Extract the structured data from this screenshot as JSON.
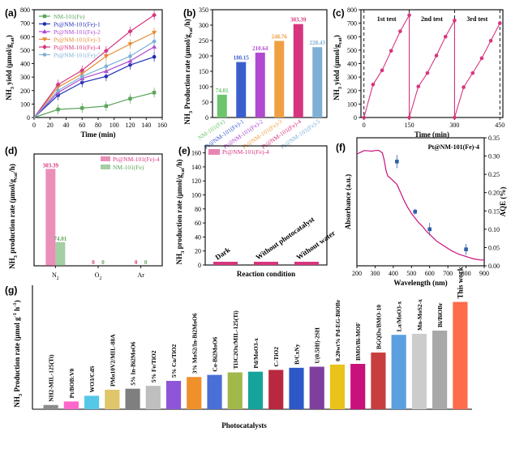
{
  "chart_data": [
    {
      "panel": "(a)",
      "type": "line",
      "xlabel": "Time (min)",
      "ylabel": "NH3 yield (μmol/gcat)",
      "xlim": [
        0,
        160
      ],
      "ylim": [
        0,
        800
      ],
      "xticks": [
        0,
        20,
        40,
        60,
        80,
        100,
        120,
        140,
        160
      ],
      "yticks": [
        0,
        100,
        200,
        300,
        400,
        500,
        600,
        700,
        800
      ],
      "x": [
        0,
        30,
        60,
        90,
        120,
        150
      ],
      "legend": "top-left",
      "series": [
        {
          "name": "NM-101(Fe)",
          "color": "#5aa55a",
          "values": [
            0,
            60,
            70,
            85,
            140,
            185
          ]
        },
        {
          "name": "Pt@NM-101(Fe)-1",
          "color": "#1f2db5",
          "values": [
            0,
            165,
            260,
            305,
            390,
            450
          ]
        },
        {
          "name": "Pt@NM-101(Fe)-2",
          "color": "#b04ad0",
          "values": [
            0,
            185,
            290,
            345,
            420,
            525
          ]
        },
        {
          "name": "Pt@NM-101(Fe)-3",
          "color": "#e68a30",
          "values": [
            0,
            225,
            325,
            455,
            545,
            630
          ]
        },
        {
          "name": "Pt@NM-101(Fe)-4",
          "color": "#d8347e",
          "values": [
            0,
            245,
            350,
            495,
            640,
            760
          ]
        },
        {
          "name": "Pt@NM-101(Fe)-5",
          "color": "#7eb0d6",
          "values": [
            0,
            200,
            305,
            380,
            455,
            565
          ]
        }
      ]
    },
    {
      "panel": "(b)",
      "type": "bar",
      "ylabel": "NH3 Production rate (μmol/gcat/h)",
      "ylim": [
        0,
        350
      ],
      "yticks": [
        0,
        50,
        100,
        150,
        200,
        250,
        300,
        350
      ],
      "categories": [
        "NM-101(Fe)",
        "Pt@NM-101(Fe)-1",
        "Pt@NM-101(Fe)-2",
        "Pt@NM-101(Fe)-3",
        "Pt@NM-101(Fe)-4",
        "Pt@NM-101(Fe)-5"
      ],
      "values": [
        74.01,
        180.15,
        210.64,
        248.76,
        303.39,
        228.43
      ],
      "labels": [
        "74.01",
        "180.15",
        "210.64",
        "248.76",
        "303.39",
        "228.43"
      ],
      "colors": [
        "#6cc46c",
        "#3a5fcd",
        "#b04ad0",
        "#f0a040",
        "#d8347e",
        "#7eb0d6"
      ]
    },
    {
      "panel": "(c)",
      "type": "line",
      "xlabel": "Time (min)",
      "ylabel": "NH3 yield (μmol/gcat)",
      "xlim": [
        -10,
        460
      ],
      "ylim": [
        0,
        800
      ],
      "xticks": [
        0,
        150,
        300,
        450
      ],
      "yticks": [
        0,
        100,
        200,
        300,
        400,
        500,
        600,
        700,
        800
      ],
      "annotations": [
        "1st test",
        "2nd test",
        "3rd test"
      ],
      "series": [
        {
          "name": "",
          "color": "#d8347e",
          "x": [
            0,
            30,
            60,
            90,
            120,
            150,
            150,
            180,
            210,
            240,
            270,
            300,
            300,
            330,
            360,
            390,
            420,
            450
          ],
          "values": [
            0,
            245,
            350,
            495,
            640,
            760,
            0,
            230,
            330,
            460,
            600,
            720,
            0,
            225,
            330,
            440,
            570,
            700
          ]
        }
      ]
    },
    {
      "panel": "(d)",
      "type": "bar",
      "ylabel": "NH3 production rate (μmol/gcat/h)",
      "ylim": [
        0,
        350
      ],
      "categories": [
        "N2",
        "O2",
        "Ar"
      ],
      "series": [
        {
          "name": "Pt@NM-101(Fe)-4",
          "color": "#d8347e",
          "values": [
            303.39,
            0,
            0
          ]
        },
        {
          "name": "NM-101(Fe)",
          "color": "#5aa55a",
          "values": [
            74.01,
            0,
            0
          ]
        }
      ],
      "labels": [
        [
          "303.39",
          "0",
          "0"
        ],
        [
          "74.01",
          "0",
          "0"
        ]
      ],
      "legend": "top-right"
    },
    {
      "panel": "(e)",
      "type": "bar",
      "xlabel": "Reaction condition",
      "ylabel": "NH3 production rate (μmol/gcat/h)",
      "ylim": [
        0,
        170
      ],
      "yticks": [
        0,
        20,
        40,
        60,
        80,
        100,
        120,
        140,
        160
      ],
      "categories": [
        "Dark",
        "Without photocatalyst",
        "Without water"
      ],
      "values": [
        0,
        0,
        0
      ],
      "series_name": "Pt@NM-101(Fe)-4",
      "color": "#d8347e",
      "legend": "top-left"
    },
    {
      "panel": "(f)",
      "type": "line",
      "xlabel": "Wavelength (nm)",
      "ylabel": "Absorbance (a.u.)",
      "ylabel_right": "AQE (%)",
      "xlim": [
        200,
        900
      ],
      "xticks": [
        200,
        300,
        400,
        500,
        600,
        700,
        800,
        900
      ],
      "ylim_right": [
        0,
        0.35
      ],
      "yticks_right": [
        0.0,
        0.05,
        0.1,
        0.15,
        0.2,
        0.25,
        0.3,
        0.35
      ],
      "ytick_labels_right": [
        "0.00",
        "0.05",
        "0.10",
        "0.15",
        "0.20",
        "0.25",
        "0.30",
        "0.35"
      ],
      "annotation": "Pt@NM-101(Fe)-4",
      "absorbance": {
        "x": [
          200,
          220,
          240,
          260,
          280,
          300,
          320,
          340,
          350,
          360,
          370,
          380,
          400,
          420,
          440,
          460,
          480,
          500,
          520,
          540,
          560,
          580,
          600,
          620,
          640,
          660,
          680,
          700,
          720,
          740,
          760,
          780,
          800,
          820,
          840,
          860,
          880,
          900
        ],
        "values": [
          0.96,
          0.975,
          0.99,
          0.988,
          0.985,
          0.99,
          0.992,
          0.97,
          0.91,
          0.82,
          0.77,
          0.76,
          0.73,
          0.7,
          0.63,
          0.56,
          0.5,
          0.45,
          0.41,
          0.37,
          0.34,
          0.3,
          0.27,
          0.24,
          0.21,
          0.19,
          0.17,
          0.15,
          0.13,
          0.115,
          0.1,
          0.09,
          0.08,
          0.07,
          0.06,
          0.055,
          0.05,
          0.05
        ]
      },
      "aqe": {
        "x": [
          420,
          520,
          600,
          800
        ],
        "values": [
          0.285,
          0.148,
          0.1,
          0.045
        ],
        "errors": [
          0.018,
          0.008,
          0.017,
          0.015
        ]
      }
    },
    {
      "panel": "(g)",
      "type": "bar",
      "xlabel": "Photocatalysts",
      "ylabel": "NH3 Production rate (μmol g⁻¹ h⁻¹)",
      "ylim": [
        0,
        350
      ],
      "categories": [
        "NH2-MIL-125(Ti)",
        "Pt/BOB:V0",
        "WO3/CdS",
        "PMo10V2/MIL-88A",
        "5% In-Bi2MoO6",
        "5% Fe/TiO2",
        "5% Cu/TiO2",
        "3% MoS2/In-Bi2MoO6",
        "Co-Bi2MoO6",
        "Ti3C2Ox/MIL-125(Ti)",
        "Pd/MoO3-x",
        "C-TiO2",
        "B/CxNy",
        "U(0.5Hf)-2SH",
        "0.20wt% Pd-EG-BiOBr",
        "BMO/Bi-MOF",
        "BGQDs/BMO-10",
        "La/MoO3-x",
        "Mn-MoS2-x",
        "Bi/BiOBr",
        "This work"
      ],
      "values": [
        12,
        22,
        38,
        55,
        58,
        66,
        80,
        91,
        97,
        104,
        106,
        111,
        117,
        120,
        126,
        128,
        160,
        210,
        213,
        222,
        303
      ],
      "colors": [
        "#8c8c8c",
        "#ff66cc",
        "#55c8e8",
        "#e0c66a",
        "#7f7f7f",
        "#bfbfbf",
        "#8e55d8",
        "#f0902a",
        "#4a6fd6",
        "#a3b84a",
        "#16a39b",
        "#b8283e",
        "#2d58c8",
        "#7e3f9d",
        "#e9c21a",
        "#c8117a",
        "#c83e3e",
        "#5b9fe0",
        "#cccccc",
        "#a8a8a8",
        "#ff6c4c"
      ],
      "highlight_label_color": "#ff2200"
    }
  ]
}
